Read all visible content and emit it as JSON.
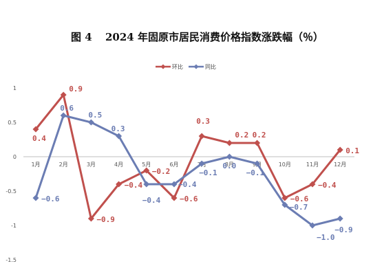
{
  "figure": {
    "number": "图 4",
    "title": "2024 年固原市居民消费价格指数涨跌幅（％）"
  },
  "chart_data": {
    "type": "line",
    "categories": [
      "1月",
      "2月",
      "3月",
      "4月",
      "5月",
      "6月",
      "7月",
      "8月",
      "9月",
      "10月",
      "11月",
      "12月"
    ],
    "series": [
      {
        "name": "环比",
        "color": "#c0504d",
        "values": [
          0.4,
          0.9,
          -0.9,
          -0.4,
          -0.2,
          -0.6,
          0.3,
          0.2,
          0.2,
          -0.6,
          -0.4,
          0.1
        ],
        "labels": [
          "0.4",
          "0.9",
          "−0.9",
          "−0.4",
          "−0.2",
          "−0.6",
          "0.3",
          "0.2",
          "0.2",
          "−0.6",
          "−0.4",
          "0.1"
        ]
      },
      {
        "name": "同比",
        "color": "#6b7db3",
        "values": [
          -0.6,
          0.6,
          0.5,
          0.3,
          -0.4,
          -0.4,
          -0.1,
          0.0,
          -0.1,
          -0.7,
          -1.0,
          -0.9
        ],
        "labels": [
          "−0.6",
          "0.6",
          "0.5",
          "0.3",
          "−0.4",
          "−0.4",
          "−0.1",
          "0.0",
          "−0.1",
          "−0.7",
          "−1.0",
          "−0.9"
        ]
      }
    ],
    "yticks": [
      "1",
      "0.5",
      "0",
      "-0.5",
      "-1",
      "-1.5"
    ],
    "ylim": [
      -1.5,
      1
    ],
    "legend": "top-center",
    "grid": false
  }
}
